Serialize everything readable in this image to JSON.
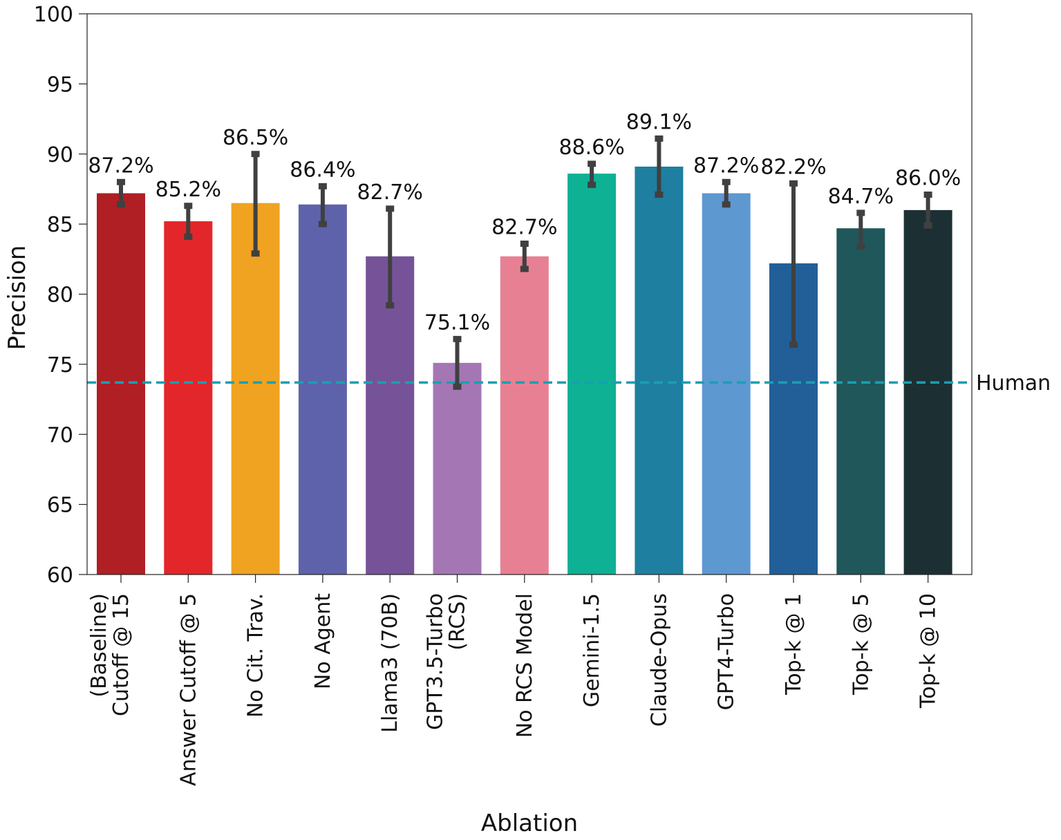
{
  "chart_data": {
    "type": "bar",
    "xlabel": "Ablation",
    "ylabel": "Precision",
    "ylim": [
      60,
      100
    ],
    "yticks": [
      60,
      65,
      70,
      75,
      80,
      85,
      90,
      95,
      100
    ],
    "grid": false,
    "legend": "none",
    "categories": [
      [
        "(Baseline)",
        "Cutoff @ 15"
      ],
      [
        "Answer Cutoff @ 5"
      ],
      [
        "No Cit. Trav."
      ],
      [
        "No Agent"
      ],
      [
        "Llama3 (70B)"
      ],
      [
        "GPT3.5-Turbo",
        "(RCS)"
      ],
      [
        "No RCS Model"
      ],
      [
        "Gemini-1.5"
      ],
      [
        "Claude-Opus"
      ],
      [
        "GPT4-Turbo"
      ],
      [
        "Top-k @ 1"
      ],
      [
        "Top-k @ 5"
      ],
      [
        "Top-k @ 10"
      ]
    ],
    "values": [
      87.2,
      85.2,
      86.5,
      86.4,
      82.7,
      75.1,
      82.7,
      88.6,
      89.1,
      87.2,
      82.2,
      84.7,
      86.0
    ],
    "value_labels": [
      "87.2%",
      "85.2%",
      "86.5%",
      "86.4%",
      "82.7%",
      "75.1%",
      "82.7%",
      "88.6%",
      "89.1%",
      "87.2%",
      "82.2%",
      "84.7%",
      "86.0%"
    ],
    "error_low": [
      86.4,
      84.1,
      82.9,
      85.0,
      79.2,
      73.4,
      81.8,
      87.8,
      87.1,
      86.4,
      76.4,
      83.4,
      84.9
    ],
    "error_high": [
      88.0,
      86.3,
      90.0,
      87.7,
      86.1,
      76.8,
      83.6,
      89.3,
      91.1,
      88.0,
      87.9,
      85.8,
      87.1
    ],
    "colors": [
      "#B01F24",
      "#E3262A",
      "#EFA321",
      "#5E62AA",
      "#765398",
      "#A477B4",
      "#E88093",
      "#0EB194",
      "#1E7FA0",
      "#5E98D1",
      "#225F98",
      "#1F575A",
      "#1C3034"
    ],
    "error_color": "#404040",
    "reference_line": {
      "label": "Human",
      "value": 73.7,
      "color": "#1A9FB3",
      "style": "dashed"
    }
  }
}
